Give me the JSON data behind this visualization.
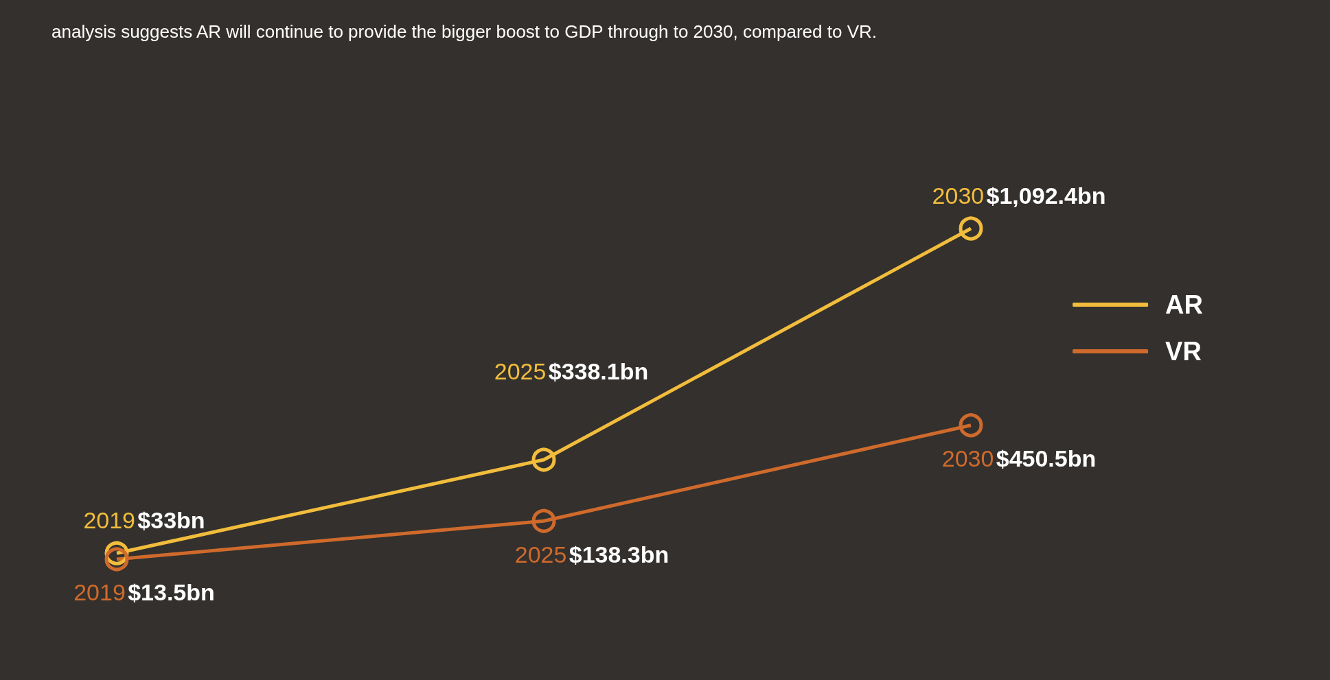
{
  "chart_data": {
    "type": "line",
    "title": "analysis suggests AR will continue to provide the bigger boost to GDP through to 2030, compared to VR.",
    "categories": [
      "2019",
      "2025",
      "2030"
    ],
    "series": [
      {
        "name": "AR",
        "color": "#f2bd3c",
        "values": [
          33,
          338.1,
          1092.4
        ],
        "value_labels": [
          "$33bn",
          "$338.1bn",
          "$1,092.4bn"
        ]
      },
      {
        "name": "VR",
        "color": "#cf6a2c",
        "values": [
          13.5,
          138.3,
          450.5
        ],
        "value_labels": [
          "$13.5bn",
          "$138.3bn",
          "$450.5bn"
        ]
      }
    ],
    "marker": "circle",
    "line_style": "solid",
    "grid": false,
    "legend": "right",
    "tick_labels": false
  }
}
